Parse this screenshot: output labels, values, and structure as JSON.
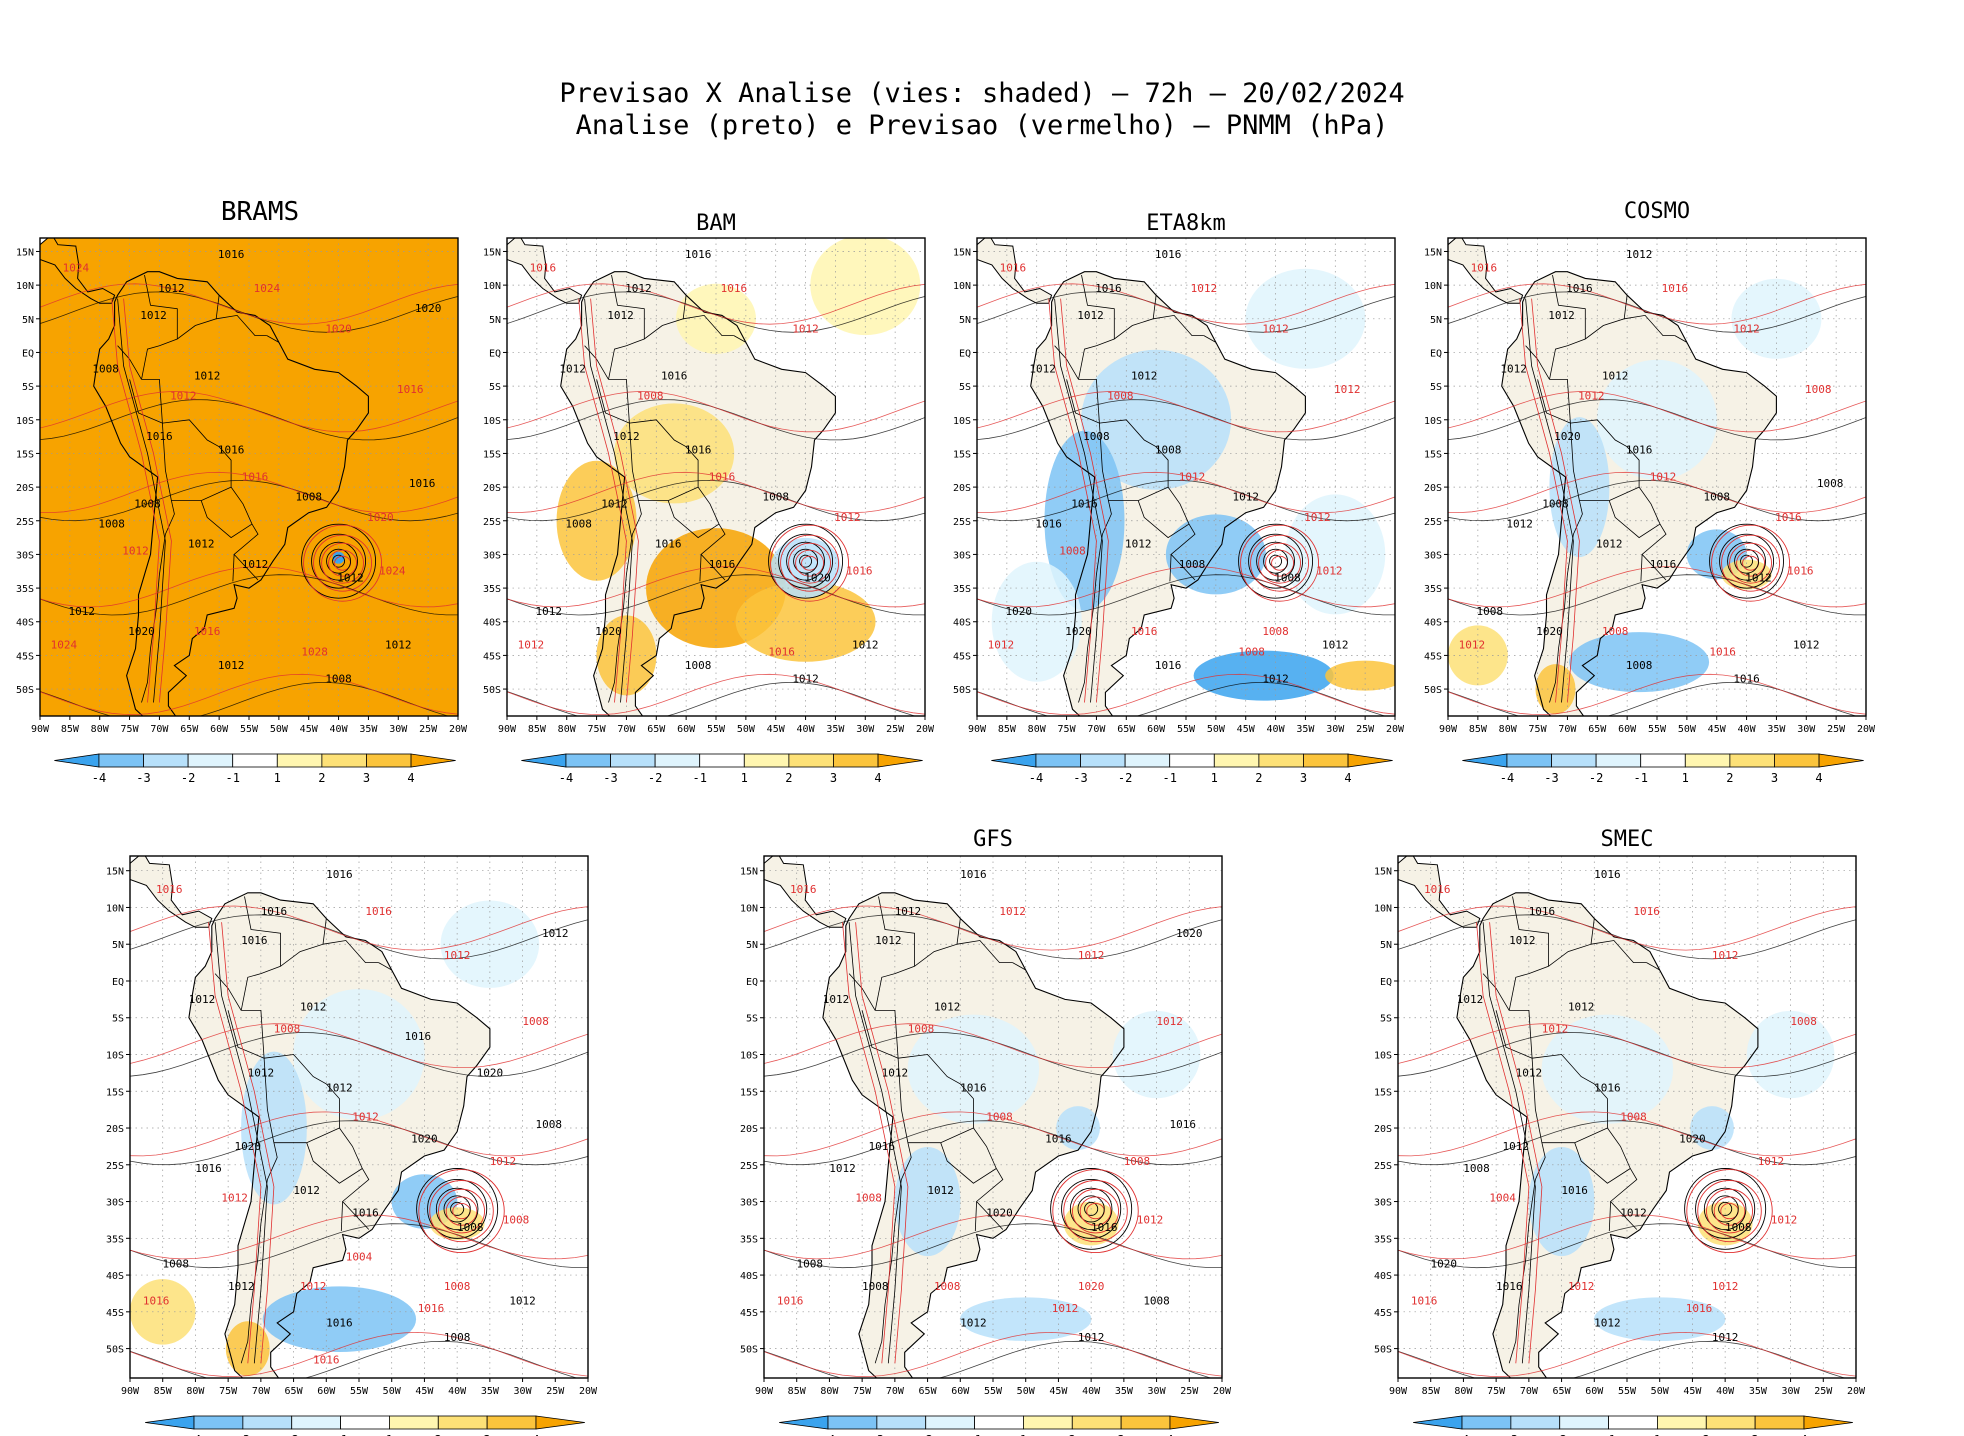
{
  "title": {
    "line1": "Previsao X Analise (vies: shaded) – 72h – 20/02/2024",
    "line2": "Analise (preto) e Previsao (vermelho) – PNMM (hPa)"
  },
  "axes": {
    "lon_ticks": [
      "90W",
      "85W",
      "80W",
      "75W",
      "70W",
      "65W",
      "60W",
      "55W",
      "50W",
      "45W",
      "40W",
      "35W",
      "30W",
      "25W",
      "20W"
    ],
    "lat_ticks": [
      "15N",
      "10N",
      "5N",
      "EQ",
      "5S",
      "10S",
      "15S",
      "20S",
      "25S",
      "30S",
      "35S",
      "40S",
      "45S",
      "50S"
    ]
  },
  "colorbar": {
    "labels": [
      "-4",
      "-3",
      "-2",
      "-1",
      "1",
      "2",
      "3",
      "4"
    ],
    "colors": [
      "#3aa3ee",
      "#7cc3f5",
      "#b7e0fa",
      "#dff4fd",
      "#ffffff",
      "#fff6b0",
      "#fde177",
      "#fbc43c",
      "#f7a300"
    ]
  },
  "colors": {
    "land": "#f6f2e6",
    "coast": "#000000",
    "analysis_contour": "#000000",
    "forecast_contour": "#e03030",
    "grid": "#9a9a9a"
  },
  "panels": [
    {
      "name": "BRAMS",
      "bias": "warm",
      "labels_black": [
        "1016",
        "1012",
        "1012",
        "1008",
        "1012",
        "1016",
        "1016",
        "1008",
        "1008",
        "1008",
        "1012",
        "1012",
        "1012",
        "1012",
        "1020",
        "1012",
        "1008",
        "1012",
        "1016",
        "1020"
      ],
      "labels_red": [
        "1024",
        "1024",
        "1020",
        "1012",
        "1016",
        "1020",
        "1024",
        "1028",
        "1024",
        "1016",
        "1016",
        "1012"
      ]
    },
    {
      "name": "BAM",
      "bias": "warm_mixed",
      "labels_black": [
        "1016",
        "1012",
        "1012",
        "1012",
        "1016",
        "1012",
        "1016",
        "1008",
        "1012",
        "1008",
        "1016",
        "1016",
        "1020",
        "1012",
        "1020",
        "1008",
        "1012",
        "1012"
      ],
      "labels_red": [
        "1016",
        "1016",
        "1012",
        "1008",
        "1016",
        "1012",
        "1016",
        "1016",
        "1012"
      ]
    },
    {
      "name": "ETA8km",
      "bias": "cold",
      "labels_black": [
        "1016",
        "1016",
        "1012",
        "1012",
        "1012",
        "1008",
        "1008",
        "1012",
        "1016",
        "1016",
        "1012",
        "1008",
        "1008",
        "1020",
        "1020",
        "1016",
        "1012",
        "1012"
      ],
      "labels_red": [
        "1016",
        "1012",
        "1012",
        "1008",
        "1012",
        "1012",
        "1012",
        "1008",
        "1012",
        "1016",
        "1012",
        "1008",
        "1008"
      ]
    },
    {
      "name": "COSMO",
      "bias": "cold_mixed",
      "labels_black": [
        "1012",
        "1016",
        "1012",
        "1012",
        "1012",
        "1020",
        "1016",
        "1008",
        "1008",
        "1012",
        "1012",
        "1016",
        "1012",
        "1008",
        "1020",
        "1008",
        "1016",
        "1012",
        "1008"
      ],
      "labels_red": [
        "1016",
        "1016",
        "1012",
        "1012",
        "1012",
        "1016",
        "1016",
        "1016",
        "1012",
        "1008",
        "1008"
      ]
    },
    {
      "name": "",
      "bias": "cold_mixed",
      "labels_black": [
        "1016",
        "1016",
        "1016",
        "1012",
        "1012",
        "1012",
        "1012",
        "1020",
        "1020",
        "1016",
        "1012",
        "1016",
        "1008",
        "1008",
        "1012",
        "1016",
        "1008",
        "1012",
        "1008",
        "1012",
        "1016",
        "1020"
      ],
      "labels_red": [
        "1016",
        "1016",
        "1012",
        "1008",
        "1012",
        "1012",
        "1008",
        "1016",
        "1016",
        "1012",
        "1008",
        "1012",
        "1008",
        "1004",
        "1016"
      ]
    },
    {
      "name": "GFS",
      "bias": "cold_light",
      "labels_black": [
        "1016",
        "1012",
        "1012",
        "1012",
        "1012",
        "1012",
        "1016",
        "1016",
        "1016",
        "1012",
        "1012",
        "1020",
        "1016",
        "1008",
        "1008",
        "1012",
        "1012",
        "1008",
        "1016",
        "1020"
      ],
      "labels_red": [
        "1016",
        "1012",
        "1012",
        "1008",
        "1008",
        "1008",
        "1012",
        "1012",
        "1016",
        "1008",
        "1012",
        "1008",
        "1020"
      ]
    },
    {
      "name": "SMEC",
      "bias": "cold_light",
      "labels_black": [
        "1016",
        "1016",
        "1012",
        "1012",
        "1012",
        "1012",
        "1016",
        "1020",
        "1012",
        "1008",
        "1016",
        "1012",
        "1008",
        "1020",
        "1016",
        "1012",
        "1012"
      ],
      "labels_red": [
        "1016",
        "1016",
        "1012",
        "1012",
        "1008",
        "1012",
        "1012",
        "1016",
        "1016",
        "1012",
        "1008",
        "1004",
        "1012"
      ]
    }
  ]
}
